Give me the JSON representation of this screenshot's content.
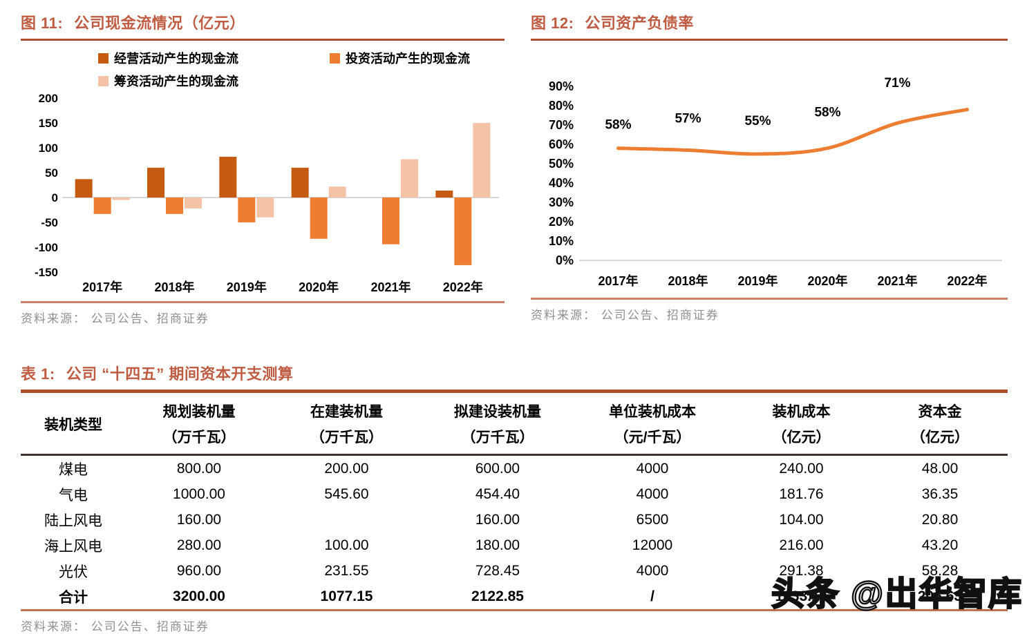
{
  "colors": {
    "title": "#bf5b41",
    "title_rule": "#ab4f2d",
    "source_rule": "#c98169",
    "source_text": "#8f8f8f",
    "axis_line": "#c8c8c8",
    "header_rule": "#3f3231",
    "table_bottom_rule": "#c3714d",
    "bar_operating": "#c55a11",
    "bar_investing": "#ed7d31",
    "bar_financing": "#f4c3a7",
    "line": "#ed7d31",
    "watermark_fill": "#ffffff",
    "watermark_stroke": "#111111"
  },
  "fig11": {
    "label": "图 11:",
    "title": "公司现金流情况（亿元）",
    "source": "资料来源： 公司公告、招商证券"
  },
  "fig12": {
    "label": "图 12:",
    "title": "公司资产负债率",
    "source": "资料来源： 公司公告、招商证券"
  },
  "chart_data": [
    {
      "id": "fig11",
      "type": "bar",
      "title": "公司现金流情况（亿元）",
      "categories": [
        "2017年",
        "2018年",
        "2019年",
        "2020年",
        "2021年",
        "2022年"
      ],
      "series": [
        {
          "name": "经营活动产生的现金流",
          "color_key": "bar_operating",
          "values": [
            37,
            60,
            82,
            60,
            0,
            14
          ]
        },
        {
          "name": "投资活动产生的现金流",
          "color_key": "bar_investing",
          "values": [
            -33,
            -33,
            -50,
            -83,
            -94,
            -136
          ]
        },
        {
          "name": "筹资活动产生的现金流",
          "color_key": "bar_financing",
          "values": [
            -5,
            -22,
            -40,
            22,
            77,
            150
          ]
        }
      ],
      "ylim": [
        -150,
        200
      ],
      "ytick_step": 50,
      "grid": false,
      "legend_position": "top"
    },
    {
      "id": "fig12",
      "type": "line",
      "title": "公司资产负债率",
      "categories": [
        "2017年",
        "2018年",
        "2019年",
        "2020年",
        "2021年",
        "2022年"
      ],
      "values": [
        58,
        57,
        55,
        58,
        71,
        78
      ],
      "data_labels": [
        "58%",
        "57%",
        "55%",
        "58%",
        "71%",
        "78%"
      ],
      "ylim": [
        0,
        90
      ],
      "ytick_step": 10,
      "ytick_suffix": "%",
      "grid": false,
      "legend_position": "none"
    },
    {
      "id": "table1",
      "type": "table",
      "title": "公司 “十四五” 期间资本开支测算"
    }
  ],
  "table1": {
    "label": "表 1:",
    "title": "公司 “十四五” 期间资本开支测算",
    "headers": [
      {
        "line1": "装机类型",
        "line2": ""
      },
      {
        "line1": "规划装机量",
        "line2": "（万千瓦）"
      },
      {
        "line1": "在建装机量",
        "line2": "（万千瓦）"
      },
      {
        "line1": "拟建设装机量",
        "line2": "（万千瓦）"
      },
      {
        "line1": "单位装机成本",
        "line2": "（元/千瓦）"
      },
      {
        "line1": "装机成本",
        "line2": "（亿元）"
      },
      {
        "line1": "资本金",
        "line2": "（亿元）"
      }
    ],
    "rows": [
      [
        "煤电",
        "800.00",
        "200.00",
        "600.00",
        "4000",
        "240.00",
        "48.00"
      ],
      [
        "气电",
        "1000.00",
        "545.60",
        "454.40",
        "4000",
        "181.76",
        "36.35"
      ],
      [
        "陆上风电",
        "160.00",
        "",
        "160.00",
        "6500",
        "104.00",
        "20.80"
      ],
      [
        "海上风电",
        "280.00",
        "100.00",
        "180.00",
        "12000",
        "216.00",
        "43.20"
      ],
      [
        "光伏",
        "960.00",
        "231.55",
        "728.45",
        "4000",
        "291.38",
        "58.28"
      ],
      [
        "合计",
        "3200.00",
        "1077.15",
        "2122.85",
        "/",
        "1033.14",
        "206.63"
      ]
    ],
    "total_row_index": 5,
    "source": "资料来源： 公司公告、招商证券"
  },
  "watermark": {
    "text": "头条 @岀华智库"
  }
}
